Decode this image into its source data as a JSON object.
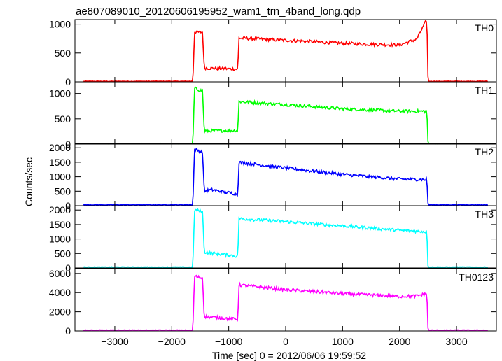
{
  "chart_data": {
    "type": "line",
    "title": "ae807089010_20120606195952_wam1_trn_4band_long.qdp",
    "xlabel": "Time [sec] 0 = 2012/06/06 19:59:52",
    "ylabel": "Counts/sec",
    "xlim": [
      -3700,
      3700
    ],
    "xticks": [
      -3000,
      -2000,
      -1000,
      0,
      1000,
      2000,
      3000
    ],
    "x_tick_labels": [
      "−3000",
      "−2000",
      "−1000",
      "0",
      "1000",
      "2000",
      "3000"
    ],
    "grid": false,
    "panels": [
      {
        "label": "TH0",
        "color": "#ff0000",
        "ylim": [
          0,
          1080
        ],
        "yticks": [
          0,
          500,
          1000
        ],
        "x": [
          -3550,
          -1630,
          -1600,
          -1460,
          -1430,
          -840,
          -820,
          0,
          1000,
          1500,
          2000,
          2300,
          2480,
          2500,
          3550
        ],
        "y": [
          10,
          10,
          860,
          860,
          240,
          220,
          760,
          720,
          670,
          650,
          640,
          740,
          1080,
          10,
          10
        ]
      },
      {
        "label": "TH1",
        "color": "#00ff00",
        "ylim": [
          0,
          1230
        ],
        "yticks": [
          0,
          500,
          1000
        ],
        "x": [
          -3550,
          -1630,
          -1600,
          -1460,
          -1430,
          -840,
          -820,
          0,
          1000,
          2000,
          2480,
          2500,
          3550
        ],
        "y": [
          10,
          10,
          1100,
          1050,
          260,
          270,
          840,
          780,
          700,
          650,
          650,
          10,
          10
        ]
      },
      {
        "label": "TH2",
        "color": "#0000ff",
        "ylim": [
          0,
          2150
        ],
        "yticks": [
          0,
          500,
          1000,
          1500,
          2000
        ],
        "x": [
          -3550,
          -1630,
          -1600,
          -1460,
          -1430,
          -1300,
          -1100,
          -840,
          -820,
          0,
          1000,
          2000,
          2480,
          2500,
          3550
        ],
        "y": [
          30,
          30,
          1950,
          1850,
          500,
          550,
          480,
          400,
          1500,
          1300,
          1080,
          920,
          900,
          30,
          30
        ]
      },
      {
        "label": "TH3",
        "color": "#00ffff",
        "ylim": [
          0,
          2150
        ],
        "yticks": [
          0,
          500,
          1000,
          1500,
          2000
        ],
        "x": [
          -3550,
          -1630,
          -1600,
          -1460,
          -1430,
          -840,
          -820,
          0,
          1000,
          2000,
          2480,
          2500,
          3550
        ],
        "y": [
          30,
          30,
          2000,
          1950,
          550,
          400,
          1700,
          1600,
          1450,
          1300,
          1250,
          30,
          30
        ]
      },
      {
        "label": "TH0123",
        "color": "#ff00ff",
        "ylim": [
          0,
          6500
        ],
        "yticks": [
          0,
          2000,
          4000,
          6000
        ],
        "x": [
          -3550,
          -1630,
          -1600,
          -1460,
          -1430,
          -840,
          -820,
          0,
          1000,
          2000,
          2300,
          2480,
          2500,
          3550
        ],
        "y": [
          80,
          80,
          5700,
          5500,
          1500,
          1200,
          4800,
          4300,
          3900,
          3600,
          3650,
          3900,
          80,
          80
        ]
      }
    ]
  }
}
